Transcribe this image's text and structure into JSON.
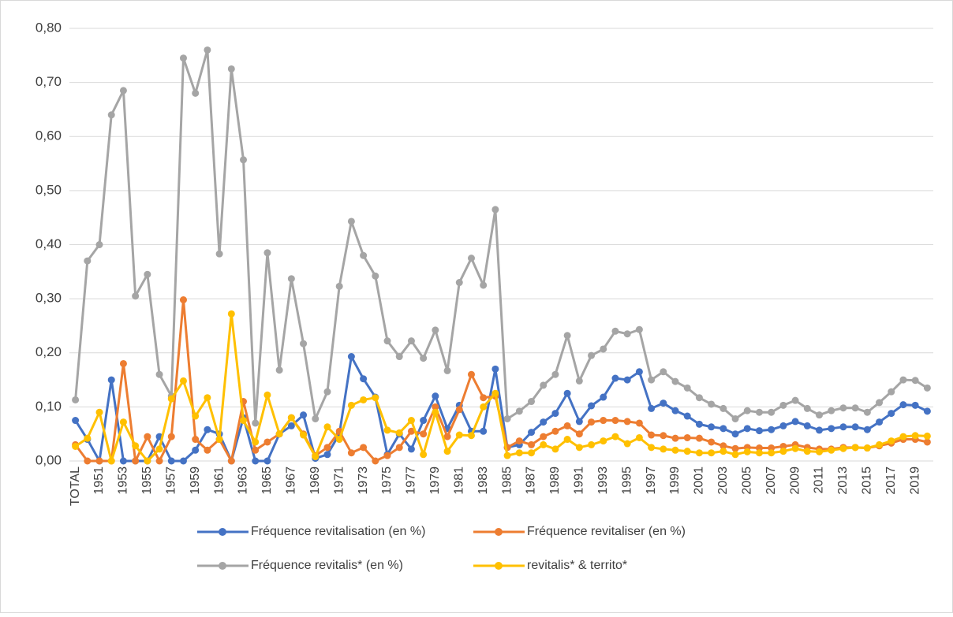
{
  "chart_data": {
    "type": "line",
    "categories": [
      "TOTAL",
      null,
      "1951",
      null,
      "1953",
      null,
      "1955",
      null,
      "1957",
      null,
      "1959",
      null,
      "1961",
      null,
      "1963",
      null,
      "1965",
      null,
      "1967",
      null,
      "1969",
      null,
      "1971",
      null,
      "1973",
      null,
      "1975",
      null,
      "1977",
      null,
      "1979",
      null,
      "1981",
      null,
      "1983",
      null,
      "1985",
      null,
      "1987",
      null,
      "1989",
      null,
      "1991",
      null,
      "1993",
      null,
      "1995",
      null,
      "1997",
      null,
      "1999",
      null,
      "2001",
      null,
      "2003",
      null,
      "2005",
      null,
      "2007",
      null,
      "2009",
      null,
      "2011",
      null,
      "2013",
      null,
      "2015",
      null,
      "2017",
      null,
      "2019",
      null
    ],
    "series": [
      {
        "name": "Fréquence revitalisation (en %)",
        "color": "#4472c4",
        "values": [
          0.075,
          0.04,
          0,
          0.15,
          0,
          0,
          0,
          0.045,
          0,
          0,
          0.02,
          0.058,
          0.05,
          0,
          0.08,
          0,
          0,
          0.05,
          0.065,
          0.085,
          0.005,
          0.012,
          0.05,
          0.193,
          0.152,
          0.118,
          0.012,
          0.05,
          0.022,
          0.075,
          0.12,
          0.06,
          0.103,
          0.055,
          0.055,
          0.17,
          0.025,
          0.03,
          0.053,
          0.072,
          0.088,
          0.125,
          0.073,
          0.102,
          0.118,
          0.153,
          0.15,
          0.165,
          0.097,
          0.107,
          0.093,
          0.083,
          0.068,
          0.063,
          0.06,
          0.05,
          0.06,
          0.056,
          0.058,
          0.065,
          0.073,
          0.065,
          0.057,
          0.06,
          0.063,
          0.063,
          0.058,
          0.072,
          0.088,
          0.104,
          0.103,
          0.092
        ]
      },
      {
        "name": "Fréquence revitaliser (en %)",
        "color": "#ed7d31",
        "values": [
          0.03,
          0,
          0,
          0,
          0.18,
          0,
          0.045,
          0,
          0.045,
          0.298,
          0.04,
          0.02,
          0.04,
          0,
          0.11,
          0.02,
          0.035,
          0.05,
          0.08,
          0.05,
          0.01,
          0.025,
          0.055,
          0.015,
          0.025,
          0,
          0.01,
          0.025,
          0.055,
          0.05,
          0.1,
          0.045,
          0.095,
          0.16,
          0.117,
          0.12,
          0.025,
          0.037,
          0.03,
          0.045,
          0.055,
          0.065,
          0.05,
          0.072,
          0.075,
          0.075,
          0.073,
          0.07,
          0.048,
          0.047,
          0.042,
          0.043,
          0.042,
          0.035,
          0.028,
          0.023,
          0.025,
          0.024,
          0.024,
          0.027,
          0.03,
          0.025,
          0.022,
          0.022,
          0.025,
          0.025,
          0.024,
          0.028,
          0.033,
          0.04,
          0.04,
          0.035
        ]
      },
      {
        "name": "Fréquence revitalis* (en %)",
        "color": "#a5a5a5",
        "values": [
          0.113,
          0.37,
          0.4,
          0.64,
          0.685,
          0.305,
          0.345,
          0.16,
          0.12,
          0.745,
          0.68,
          0.76,
          0.383,
          0.725,
          0.557,
          0.07,
          0.385,
          0.168,
          0.337,
          0.217,
          0.078,
          0.128,
          0.323,
          0.443,
          0.38,
          0.342,
          0.222,
          0.193,
          0.222,
          0.19,
          0.242,
          0.167,
          0.33,
          0.375,
          0.325,
          0.465,
          0.078,
          0.092,
          0.11,
          0.14,
          0.16,
          0.232,
          0.148,
          0.195,
          0.207,
          0.24,
          0.235,
          0.243,
          0.15,
          0.165,
          0.147,
          0.135,
          0.117,
          0.105,
          0.097,
          0.078,
          0.093,
          0.09,
          0.09,
          0.103,
          0.112,
          0.097,
          0.085,
          0.093,
          0.098,
          0.098,
          0.09,
          0.108,
          0.128,
          0.15,
          0.149,
          0.135
        ]
      },
      {
        "name": "revitalis* & territo*",
        "color": "#ffc000",
        "values": [
          0.027,
          0.042,
          0.09,
          0,
          0.072,
          0.028,
          0,
          0.022,
          0.115,
          0.148,
          0.083,
          0.117,
          0.04,
          0.272,
          0.075,
          0.035,
          0.122,
          0.05,
          0.08,
          0.048,
          0.008,
          0.063,
          0.04,
          0.103,
          0.113,
          0.117,
          0.057,
          0.052,
          0.075,
          0.012,
          0.09,
          0.018,
          0.048,
          0.047,
          0.1,
          0.125,
          0.01,
          0.015,
          0.015,
          0.03,
          0.022,
          0.04,
          0.025,
          0.03,
          0.037,
          0.045,
          0.032,
          0.043,
          0.025,
          0.022,
          0.02,
          0.018,
          0.015,
          0.015,
          0.018,
          0.012,
          0.017,
          0.015,
          0.015,
          0.018,
          0.023,
          0.018,
          0.017,
          0.02,
          0.023,
          0.025,
          0.024,
          0.03,
          0.037,
          0.045,
          0.047,
          0.046
        ]
      }
    ],
    "ylim": [
      0,
      0.8
    ],
    "yticks": [
      {
        "value": 0,
        "label": "0,00"
      },
      {
        "value": 0.1,
        "label": "0,10"
      },
      {
        "value": 0.2,
        "label": "0,20"
      },
      {
        "value": 0.3,
        "label": "0,30"
      },
      {
        "value": 0.4,
        "label": "0,40"
      },
      {
        "value": 0.5,
        "label": "0,50"
      },
      {
        "value": 0.6,
        "label": "0,60"
      },
      {
        "value": 0.7,
        "label": "0,70"
      },
      {
        "value": 0.8,
        "label": "0,80"
      }
    ],
    "grid": true,
    "legend": "bottom"
  }
}
